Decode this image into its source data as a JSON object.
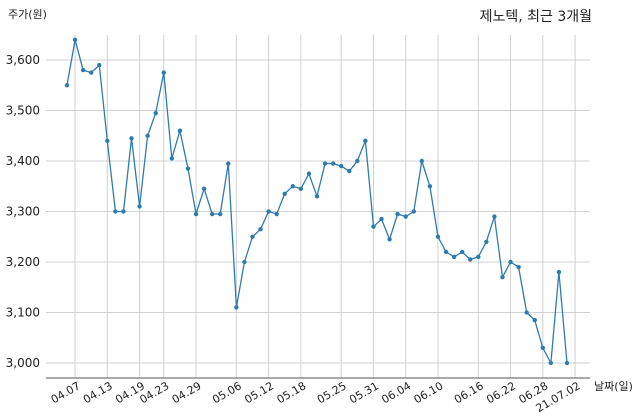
{
  "chart_data": {
    "type": "line",
    "title": "제노텍, 최근 3개월",
    "ylabel": "주가(원)",
    "xlabel": "날짜(일)",
    "ylim": [
      2970,
      3660
    ],
    "yticks": [
      3000,
      3100,
      3200,
      3300,
      3400,
      3500,
      3600
    ],
    "ytick_labels": [
      "3,000",
      "3,100",
      "3,200",
      "3,300",
      "3,400",
      "3,500",
      "3,600"
    ],
    "xtick_labels": [
      "04.07",
      "04.13",
      "04.19",
      "04.23",
      "04.29",
      "05.06",
      "05.12",
      "05.18",
      "05.25",
      "05.31",
      "06.04",
      "06.10",
      "06.16",
      "06.22",
      "06.28",
      "21.07.02"
    ],
    "xtick_index": [
      1,
      5,
      9,
      12,
      16,
      21,
      25,
      29,
      34,
      38,
      42,
      46,
      51,
      55,
      59,
      63
    ],
    "grid": true,
    "color": "#2e7bb0",
    "series": [
      {
        "values": [
          3550,
          3640,
          3580,
          3575,
          3590,
          3440,
          3300,
          3300,
          3445,
          3310,
          3450,
          3495,
          3575,
          3405,
          3460,
          3385,
          3295,
          3345,
          3295,
          3295,
          3395,
          3110,
          3200,
          3250,
          3265,
          3300,
          3295,
          3335,
          3350,
          3345,
          3375,
          3330,
          3395,
          3395,
          3390,
          3380,
          3400,
          3440,
          3270,
          3285,
          3245,
          3295,
          3290,
          3300,
          3400,
          3350,
          3250,
          3220,
          3210,
          3220,
          3205,
          3210,
          3240,
          3290,
          3170,
          3200,
          3190,
          3100,
          3085,
          3030,
          3000,
          3180,
          3000
        ]
      }
    ]
  }
}
